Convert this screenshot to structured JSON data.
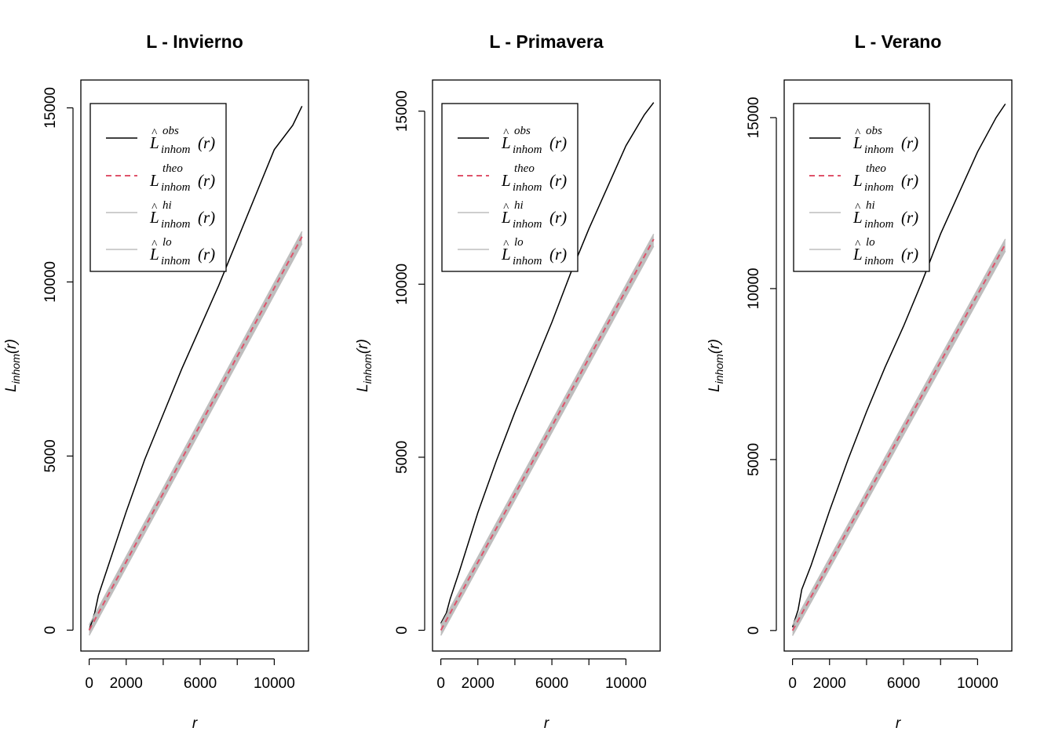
{
  "chart_data": [
    {
      "type": "line",
      "title": "L - Invierno",
      "xlabel": "r",
      "ylabel_main": "L",
      "ylabel_sub": "inhom",
      "ylabel_arg": "(r)",
      "xlim": [
        -450,
        11850
      ],
      "ylim": [
        -600,
        15800
      ],
      "xticks": [
        0,
        2000,
        4000,
        6000,
        8000,
        10000
      ],
      "xtick_labels": [
        "0",
        "2000",
        "",
        "6000",
        "",
        "10000"
      ],
      "yticks": [
        0,
        5000,
        10000,
        15000
      ],
      "ytick_labels": [
        "0",
        "5000",
        "10000",
        "15000"
      ],
      "grid": false,
      "legend_position": "top-left",
      "series": [
        {
          "name": "obs",
          "color": "#000000",
          "style": "solid",
          "x": [
            0,
            300,
            500,
            1000,
            2000,
            3000,
            4000,
            5000,
            6000,
            7000,
            8000,
            9000,
            10000,
            11000,
            11500
          ],
          "y": [
            0,
            500,
            1000,
            1800,
            3400,
            4900,
            6200,
            7500,
            8700,
            9900,
            11200,
            12500,
            13800,
            14500,
            15050
          ]
        },
        {
          "name": "theo",
          "color": "#DF536B",
          "style": "dashed",
          "x": [
            0,
            11500
          ],
          "y": [
            0,
            11300
          ]
        },
        {
          "name": "hi",
          "color": "#BEBEBE",
          "style": "solid",
          "x": [
            0,
            11500
          ],
          "y": [
            150,
            11450
          ]
        },
        {
          "name": "lo",
          "color": "#BEBEBE",
          "style": "solid",
          "x": [
            0,
            11500
          ],
          "y": [
            -150,
            11100
          ]
        }
      ],
      "legend": [
        "obs",
        "theo",
        "hi",
        "lo"
      ]
    },
    {
      "type": "line",
      "title": "L - Primavera",
      "xlabel": "r",
      "ylabel_main": "L",
      "ylabel_sub": "inhom",
      "ylabel_arg": "(r)",
      "xlim": [
        -450,
        11850
      ],
      "ylim": [
        -600,
        15900
      ],
      "xticks": [
        0,
        2000,
        4000,
        6000,
        8000,
        10000
      ],
      "xtick_labels": [
        "0",
        "2000",
        "",
        "6000",
        "",
        "10000"
      ],
      "yticks": [
        0,
        5000,
        10000,
        15000
      ],
      "ytick_labels": [
        "0",
        "5000",
        "10000",
        "15000"
      ],
      "grid": false,
      "legend_position": "top-left",
      "series": [
        {
          "name": "obs",
          "color": "#000000",
          "style": "solid",
          "x": [
            0,
            300,
            500,
            1000,
            2000,
            3000,
            4000,
            5000,
            6000,
            7000,
            8000,
            9000,
            10000,
            11000,
            11500
          ],
          "y": [
            200,
            500,
            900,
            1700,
            3400,
            4900,
            6300,
            7600,
            8900,
            10300,
            11600,
            12800,
            14000,
            14900,
            15250
          ]
        },
        {
          "name": "theo",
          "color": "#DF536B",
          "style": "dashed",
          "x": [
            0,
            11500
          ],
          "y": [
            0,
            11300
          ]
        },
        {
          "name": "hi",
          "color": "#BEBEBE",
          "style": "solid",
          "x": [
            0,
            11500
          ],
          "y": [
            150,
            11450
          ]
        },
        {
          "name": "lo",
          "color": "#BEBEBE",
          "style": "solid",
          "x": [
            0,
            11500
          ],
          "y": [
            -150,
            11100
          ]
        }
      ],
      "legend": [
        "obs",
        "theo",
        "hi",
        "lo"
      ]
    },
    {
      "type": "line",
      "title": "L - Verano",
      "xlabel": "r",
      "ylabel_main": "L",
      "ylabel_sub": "inhom",
      "ylabel_arg": "(r)",
      "xlim": [
        -450,
        11850
      ],
      "ylim": [
        -600,
        16100
      ],
      "xticks": [
        0,
        2000,
        4000,
        6000,
        8000,
        10000
      ],
      "xtick_labels": [
        "0",
        "2000",
        "",
        "6000",
        "",
        "10000"
      ],
      "yticks": [
        0,
        5000,
        10000,
        15000
      ],
      "ytick_labels": [
        "0",
        "5000",
        "10000",
        "15000"
      ],
      "grid": false,
      "legend_position": "top-left",
      "series": [
        {
          "name": "obs",
          "color": "#000000",
          "style": "solid",
          "x": [
            0,
            300,
            500,
            1000,
            2000,
            3000,
            4000,
            5000,
            6000,
            7000,
            8000,
            9000,
            10000,
            11000,
            11500
          ],
          "y": [
            100,
            600,
            1200,
            1900,
            3500,
            5000,
            6400,
            7700,
            8900,
            10200,
            11600,
            12800,
            14000,
            15000,
            15400
          ]
        },
        {
          "name": "theo",
          "color": "#DF536B",
          "style": "dashed",
          "x": [
            0,
            11500
          ],
          "y": [
            0,
            11300
          ]
        },
        {
          "name": "hi",
          "color": "#BEBEBE",
          "style": "solid",
          "x": [
            0,
            11500
          ],
          "y": [
            150,
            11450
          ]
        },
        {
          "name": "lo",
          "color": "#BEBEBE",
          "style": "solid",
          "x": [
            0,
            11500
          ],
          "y": [
            -150,
            11100
          ]
        }
      ],
      "legend": [
        "obs",
        "theo",
        "hi",
        "lo"
      ]
    }
  ],
  "legend_text": {
    "main": "L",
    "sub": "inhom",
    "arg": "(r)",
    "supers": [
      "obs",
      "theo",
      "hi",
      "lo"
    ],
    "hat": "^"
  }
}
